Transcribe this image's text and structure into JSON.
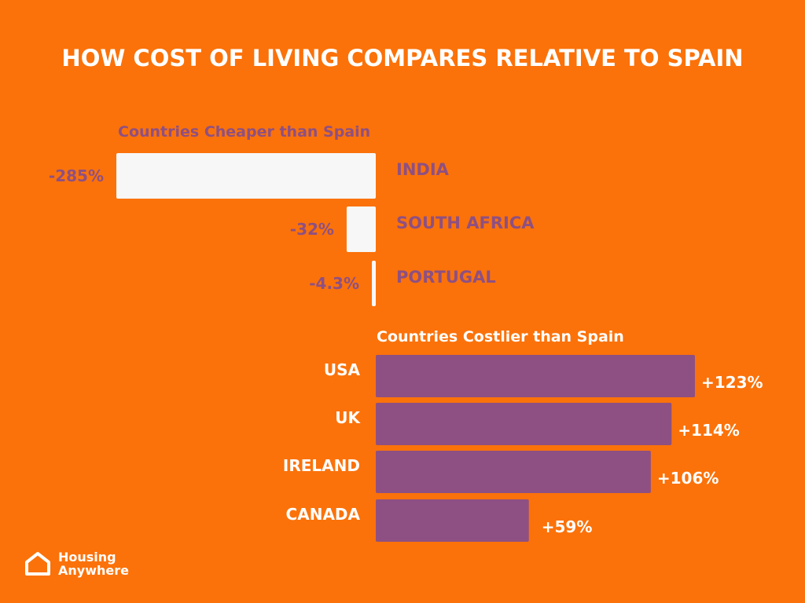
{
  "colors": {
    "background": "#fb720a",
    "cheaper_bar": "#f7f7f7",
    "costlier_bar": "#8e5082",
    "cheaper_text": "#8e5082",
    "costlier_text": "#ffffff",
    "title_text": "#ffffff"
  },
  "brand": {
    "icon": "house-icon",
    "line1": "Housing",
    "line2": "Anywhere"
  },
  "chart_data": {
    "type": "bar",
    "orientation": "horizontal",
    "title": "HOW COST OF LIVING COMPARES RELATIVE TO SPAIN",
    "unit": "%",
    "groups": [
      {
        "name": "Countries Cheaper than Spain",
        "direction": "left",
        "categories": [
          "INDIA",
          "SOUTH AFRICA",
          "PORTUGAL"
        ],
        "values": [
          -285,
          -32,
          -4.3
        ],
        "labels": [
          "-285%",
          "-32%",
          "-4.3%"
        ]
      },
      {
        "name": "Countries Costlier than Spain",
        "direction": "right",
        "categories": [
          "USA",
          "UK",
          "IRELAND",
          "CANADA"
        ],
        "values": [
          123,
          114,
          106,
          59
        ],
        "labels": [
          "+123%",
          "+114%",
          "+106%",
          "+59%"
        ]
      }
    ]
  }
}
